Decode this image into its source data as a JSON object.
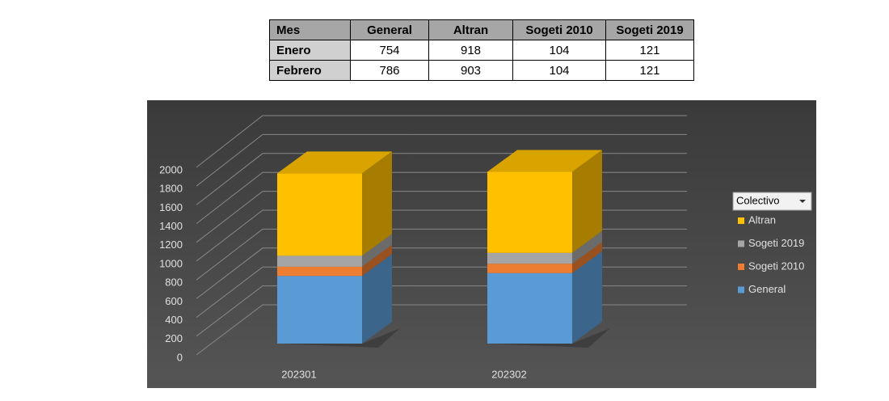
{
  "table": {
    "header": [
      "Mes",
      "General",
      "Altran",
      "Sogeti 2010",
      "Sogeti 2019"
    ],
    "rows": [
      [
        "Enero",
        "754",
        "918",
        "104",
        "121"
      ],
      [
        "Febrero",
        "786",
        "903",
        "104",
        "121"
      ]
    ]
  },
  "chart_data": {
    "type": "bar",
    "stacked": true,
    "categories": [
      "202301",
      "202302"
    ],
    "series": [
      {
        "name": "General",
        "color": "#5b9bd5",
        "values": [
          754,
          786
        ]
      },
      {
        "name": "Sogeti 2010",
        "color": "#ed7d31",
        "values": [
          104,
          104
        ]
      },
      {
        "name": "Sogeti 2019",
        "color": "#a5a5a5",
        "values": [
          121,
          121
        ]
      },
      {
        "name": "Altran",
        "color": "#ffc000",
        "values": [
          918,
          903
        ]
      }
    ],
    "ylim": [
      0,
      2000
    ],
    "yticks": [
      0,
      200,
      400,
      600,
      800,
      1000,
      1200,
      1400,
      1600,
      1800,
      2000
    ],
    "grid": true,
    "legend": "right",
    "legend_title": "Colectivo"
  }
}
